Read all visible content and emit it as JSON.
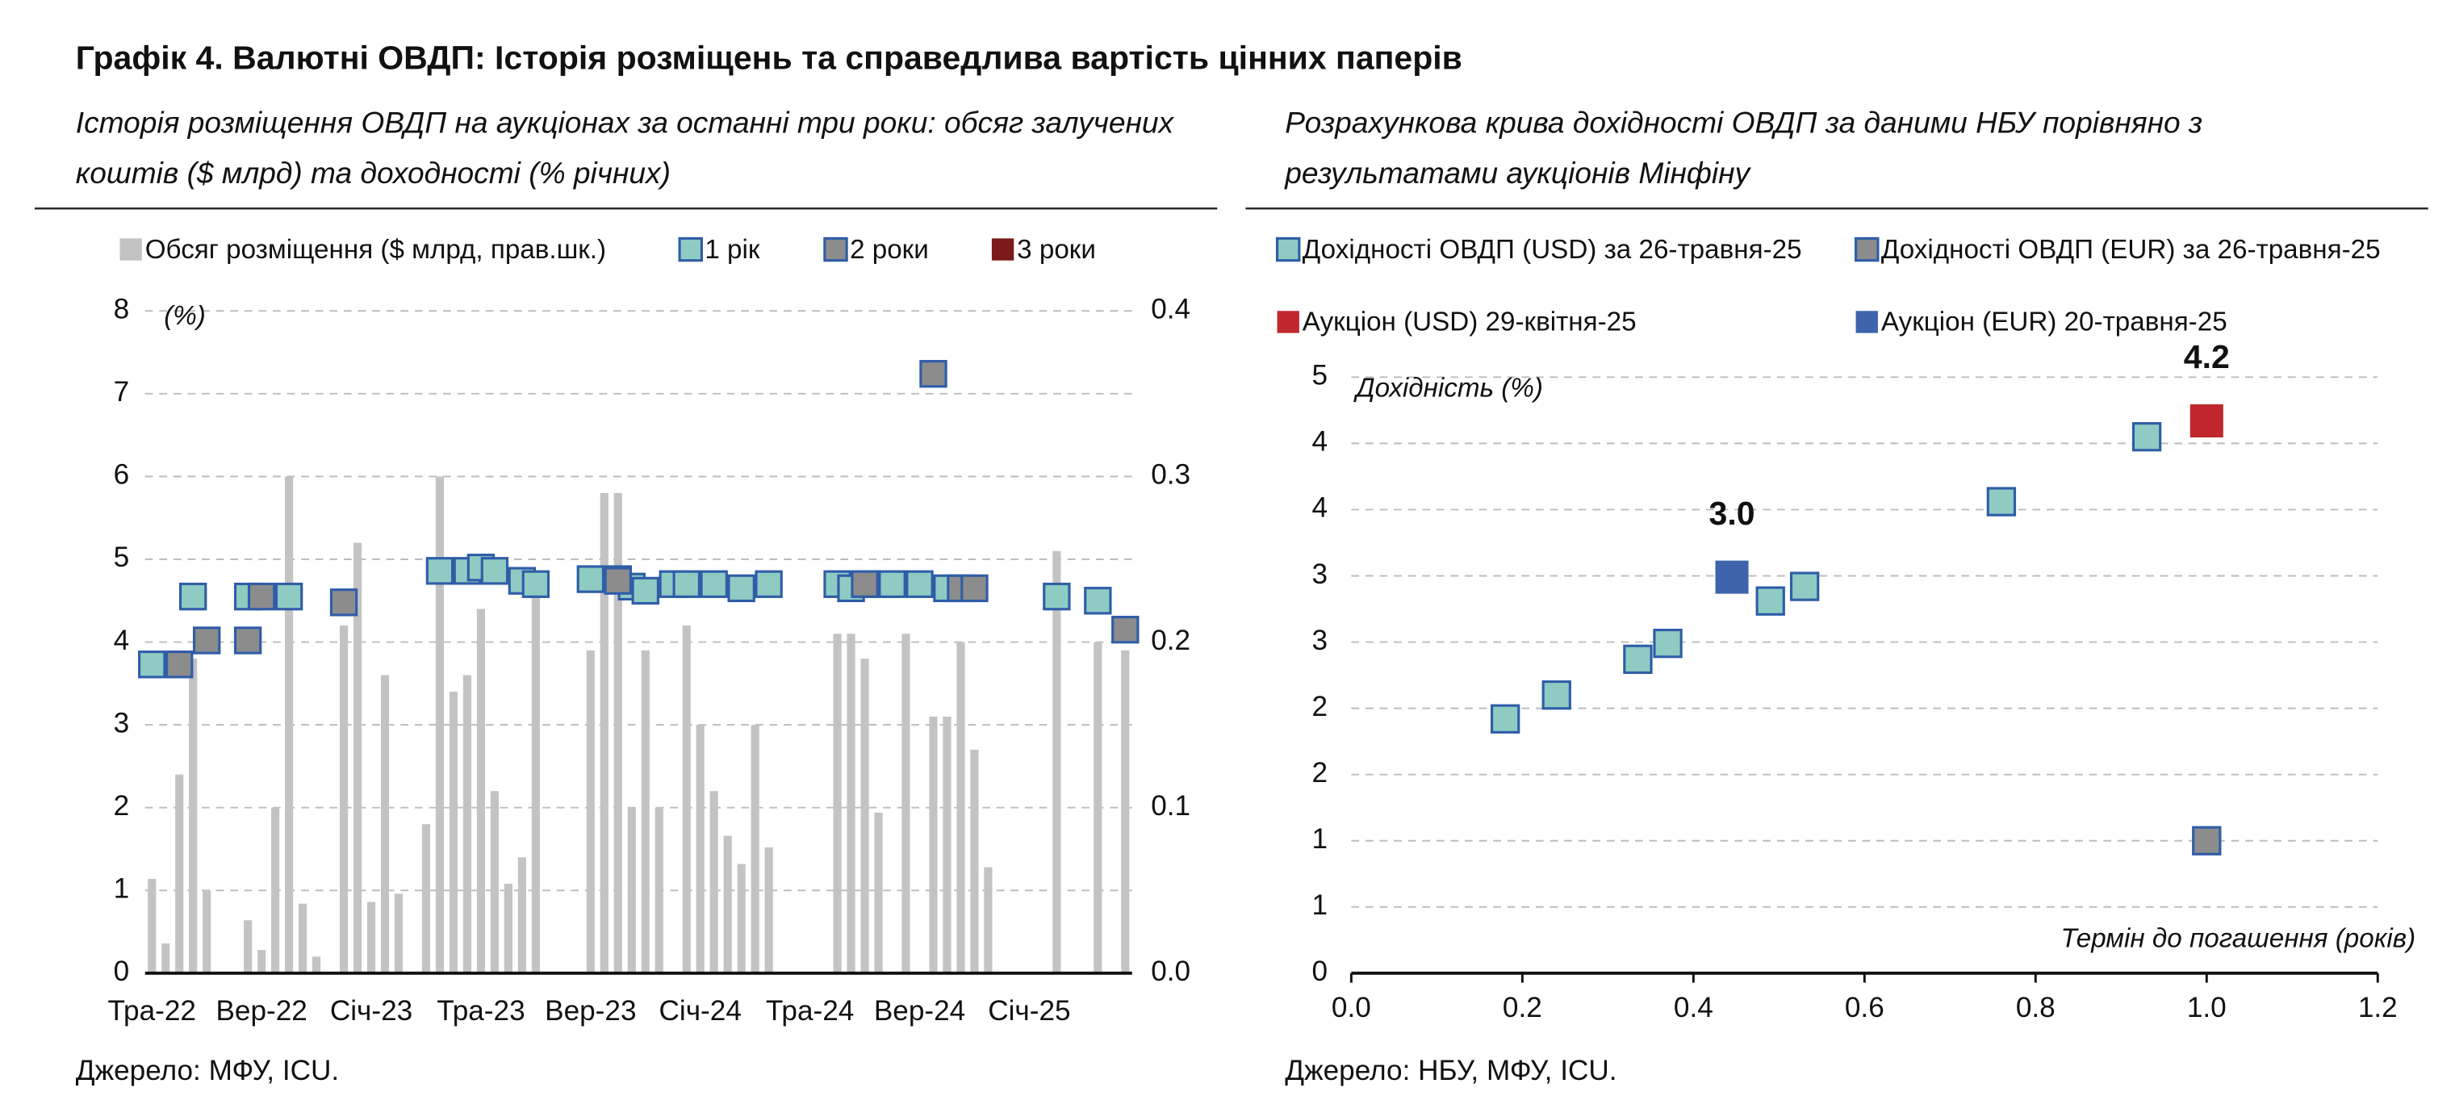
{
  "title": "Графік 4. Валютні ОВДП: Історія розміщень та справедлива вартість цінних паперів",
  "chart_data": [
    {
      "type": "bar",
      "subtitle": [
        "Історія розміщення ОВДП на аукціонах за останні три роки: обсяг залучених",
        "коштів ($ млрд) та доходності (% річних)"
      ],
      "y_label": "(%)",
      "source": "Джерело: МФУ, ICU.",
      "legend": "top",
      "grid": true,
      "categories": [
        "Тра-22",
        null,
        null,
        null,
        null,
        null,
        null,
        null,
        "Вер-22",
        null,
        null,
        null,
        null,
        null,
        null,
        null,
        "Січ-23",
        null,
        null,
        null,
        null,
        null,
        null,
        null,
        "Тра-23",
        null,
        null,
        null,
        null,
        null,
        null,
        null,
        "Вер-23",
        null,
        null,
        null,
        null,
        null,
        null,
        null,
        "Січ-24",
        null,
        null,
        null,
        null,
        null,
        null,
        null,
        "Тра-24",
        null,
        null,
        null,
        null,
        null,
        null,
        null,
        "Вер-24",
        null,
        null,
        null,
        null,
        null,
        null,
        null,
        "Січ-25",
        null,
        null,
        null,
        null,
        null,
        null,
        null
      ],
      "ylim": [
        0,
        8
      ],
      "yticks": [
        0,
        1,
        2,
        3,
        4,
        5,
        6,
        7,
        8
      ],
      "y2lim": [
        0,
        0.4
      ],
      "y2ticks": [
        {
          "value": 0,
          "label": "0.0"
        },
        0.1,
        0.2,
        0.3,
        0.4
      ],
      "series": [
        {
          "name": "Обсяг розміщення ($ млрд, прав.шк.)",
          "color": "#c3c3c3",
          "axis": "y2",
          "marker": "bar",
          "values": [
            0.057,
            0.018,
            0.12,
            0.19,
            0.05,
            null,
            null,
            0.032,
            0.014,
            0.1,
            0.3,
            0.042,
            0.01,
            null,
            0.21,
            0.26,
            0.043,
            0.18,
            0.048,
            null,
            0.09,
            0.3,
            0.17,
            0.18,
            0.22,
            0.11,
            0.054,
            0.07,
            0.23,
            null,
            null,
            null,
            0.195,
            0.29,
            0.29,
            0.1,
            0.195,
            0.1,
            null,
            0.21,
            0.15,
            0.11,
            0.083,
            0.066,
            0.15,
            0.076,
            null,
            null,
            null,
            null,
            0.205,
            0.205,
            0.19,
            0.097,
            null,
            0.205,
            null,
            0.155,
            0.155,
            0.2,
            0.135,
            0.064,
            null,
            null,
            null,
            null,
            0.255,
            null,
            null,
            0.2,
            null,
            0.195
          ]
        },
        {
          "name": "1 рік",
          "color": "#8ecbc3",
          "edgecolor": "#2f5da8",
          "marker": "square",
          "values": [
            3.73,
            null,
            null,
            4.55,
            null,
            null,
            null,
            4.55,
            null,
            null,
            4.55,
            null,
            null,
            null,
            null,
            null,
            null,
            null,
            null,
            null,
            null,
            4.86,
            null,
            4.86,
            4.9,
            4.86,
            null,
            4.74,
            4.7,
            null,
            null,
            null,
            4.76,
            null,
            4.76,
            4.67,
            4.62,
            null,
            4.7,
            4.7,
            null,
            4.7,
            null,
            4.65,
            null,
            4.7,
            null,
            null,
            null,
            null,
            4.7,
            4.65,
            null,
            4.7,
            4.7,
            null,
            4.7,
            null,
            4.65,
            null,
            null,
            null,
            null,
            null,
            null,
            null,
            4.55,
            null,
            null,
            4.5,
            null,
            null
          ]
        },
        {
          "name": "2 роки",
          "color": "#8c8c8c",
          "edgecolor": "#2f5da8",
          "marker": "square",
          "values": [
            null,
            null,
            3.73,
            null,
            4.02,
            null,
            null,
            4.02,
            4.55,
            null,
            null,
            null,
            null,
            null,
            4.48,
            null,
            null,
            null,
            null,
            null,
            null,
            null,
            null,
            null,
            null,
            null,
            null,
            null,
            null,
            null,
            null,
            null,
            null,
            null,
            4.74,
            null,
            null,
            null,
            null,
            null,
            null,
            null,
            null,
            null,
            null,
            null,
            null,
            null,
            null,
            null,
            null,
            null,
            4.7,
            null,
            null,
            null,
            null,
            7.24,
            null,
            4.65,
            4.65,
            null,
            null,
            null,
            null,
            null,
            null,
            null,
            null,
            null,
            null,
            4.15
          ]
        },
        {
          "name": "3 роки",
          "color": "#7b1a1a",
          "marker": "square",
          "values": [
            null,
            null,
            null,
            null,
            null,
            null,
            null,
            null,
            null,
            null,
            null,
            null,
            null,
            null,
            null,
            null,
            null,
            null,
            null,
            null,
            null,
            null,
            null,
            null,
            null,
            null,
            null,
            null,
            null,
            null,
            null,
            null,
            null,
            null,
            null,
            null,
            null,
            null,
            null,
            null,
            null,
            null,
            null,
            null,
            null,
            null,
            null,
            null,
            null,
            null,
            null,
            null,
            null,
            null,
            null,
            null,
            null,
            null,
            null,
            null,
            null,
            null,
            null,
            null,
            null,
            null,
            null,
            null,
            null,
            null,
            null,
            null
          ]
        }
      ]
    },
    {
      "type": "scatter",
      "subtitle": [
        "Розрахункова крива дохідності ОВДП за даними НБУ порівняно з",
        "результатами аукціонів Мінфіну"
      ],
      "y_label": "Дохідність (%)",
      "x_label": "Термін до погашення (років)",
      "source": "Джерело: НБУ, МФУ, ICU.",
      "legend": "top",
      "grid": true,
      "xlim": [
        0,
        1.2
      ],
      "xticks": [
        {
          "value": 0,
          "label": "0.0"
        },
        0.2,
        0.4,
        0.6,
        0.8,
        {
          "value": 1,
          "label": "1.0"
        },
        1.2
      ],
      "ylim": [
        0,
        4.5
      ],
      "yticks": [
        0,
        {
          "value": 0.5,
          "label": "1"
        },
        1,
        {
          "value": 1.5,
          "label": "2"
        },
        2,
        {
          "value": 2.5,
          "label": "3"
        },
        3,
        {
          "value": 3.5,
          "label": "4"
        },
        4,
        {
          "value": 4.5,
          "label": "5"
        }
      ],
      "series": [
        {
          "name": "Дохідності ОВДП (USD) за 26-травня-25",
          "color": "#8ecbc3",
          "edgecolor": "#2f5da8",
          "x": [
            0.18,
            0.24,
            0.335,
            0.37,
            0.49,
            0.53,
            0.76,
            0.93
          ],
          "values": [
            1.92,
            2.1,
            2.37,
            2.49,
            2.81,
            2.92,
            3.56,
            4.05
          ]
        },
        {
          "name": "Дохідності ОВДП (EUR) за 26-травня-25",
          "color": "#8c8c8c",
          "edgecolor": "#2f5da8",
          "x": [
            1.0
          ],
          "values": [
            1.0
          ]
        },
        {
          "name": "Аукціон (USD) 29-квітня-25",
          "color": "#c0282d",
          "x": [
            1.0
          ],
          "values": [
            4.17
          ],
          "value_labels": [
            "4.2"
          ]
        },
        {
          "name": "Аукціон (EUR) 20-травня-25",
          "color": "#3d64ad",
          "x": [
            0.445
          ],
          "values": [
            2.99
          ],
          "value_labels": [
            "3.0"
          ]
        }
      ]
    }
  ]
}
